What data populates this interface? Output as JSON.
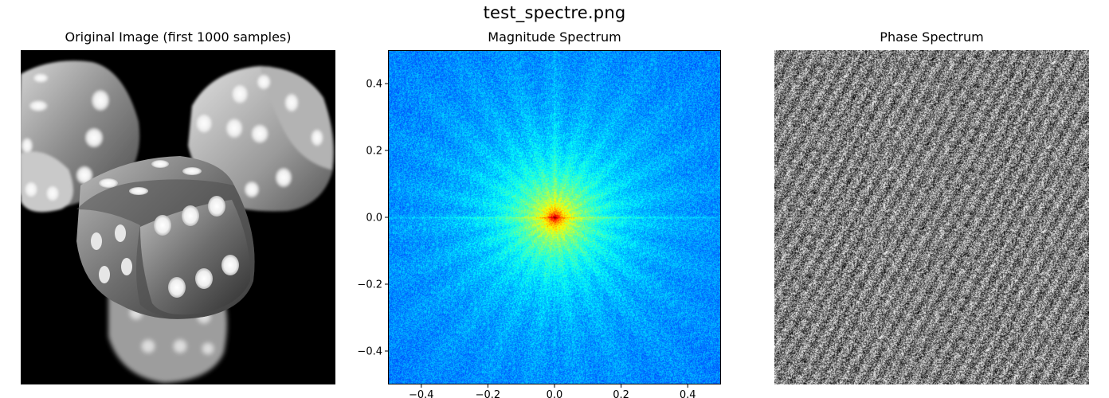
{
  "figure": {
    "suptitle": "test_spectre.png"
  },
  "chart_data": [
    {
      "type": "image",
      "title": "Original Image (first 1000 samples)",
      "description_colormap": "gray",
      "axes_visible": false
    },
    {
      "type": "heatmap",
      "title": "Magnitude Spectrum",
      "colormap": "jet",
      "xlim": [
        -0.5,
        0.5
      ],
      "ylim": [
        -0.5,
        0.5
      ],
      "xticks": [
        -0.4,
        -0.2,
        0.0,
        0.2,
        0.4
      ],
      "xtick_labels": [
        "−0.4",
        "−0.2",
        "0.0",
        "0.2",
        "0.4"
      ],
      "yticks": [
        0.4,
        0.2,
        0.0,
        -0.2,
        -0.4
      ],
      "ytick_labels": [
        "0.4",
        "0.2",
        "0.0",
        "−0.2",
        "−0.4"
      ],
      "peak": {
        "x": 0.0,
        "y": 0.0
      }
    },
    {
      "type": "heatmap",
      "title": "Phase Spectrum",
      "colormap": "gray",
      "axes_visible": false
    }
  ],
  "colors": {
    "jet_low": "#0000ff",
    "jet_mid": "#00ffcc",
    "jet_peak": "#ff0000",
    "axis": "#000000"
  }
}
